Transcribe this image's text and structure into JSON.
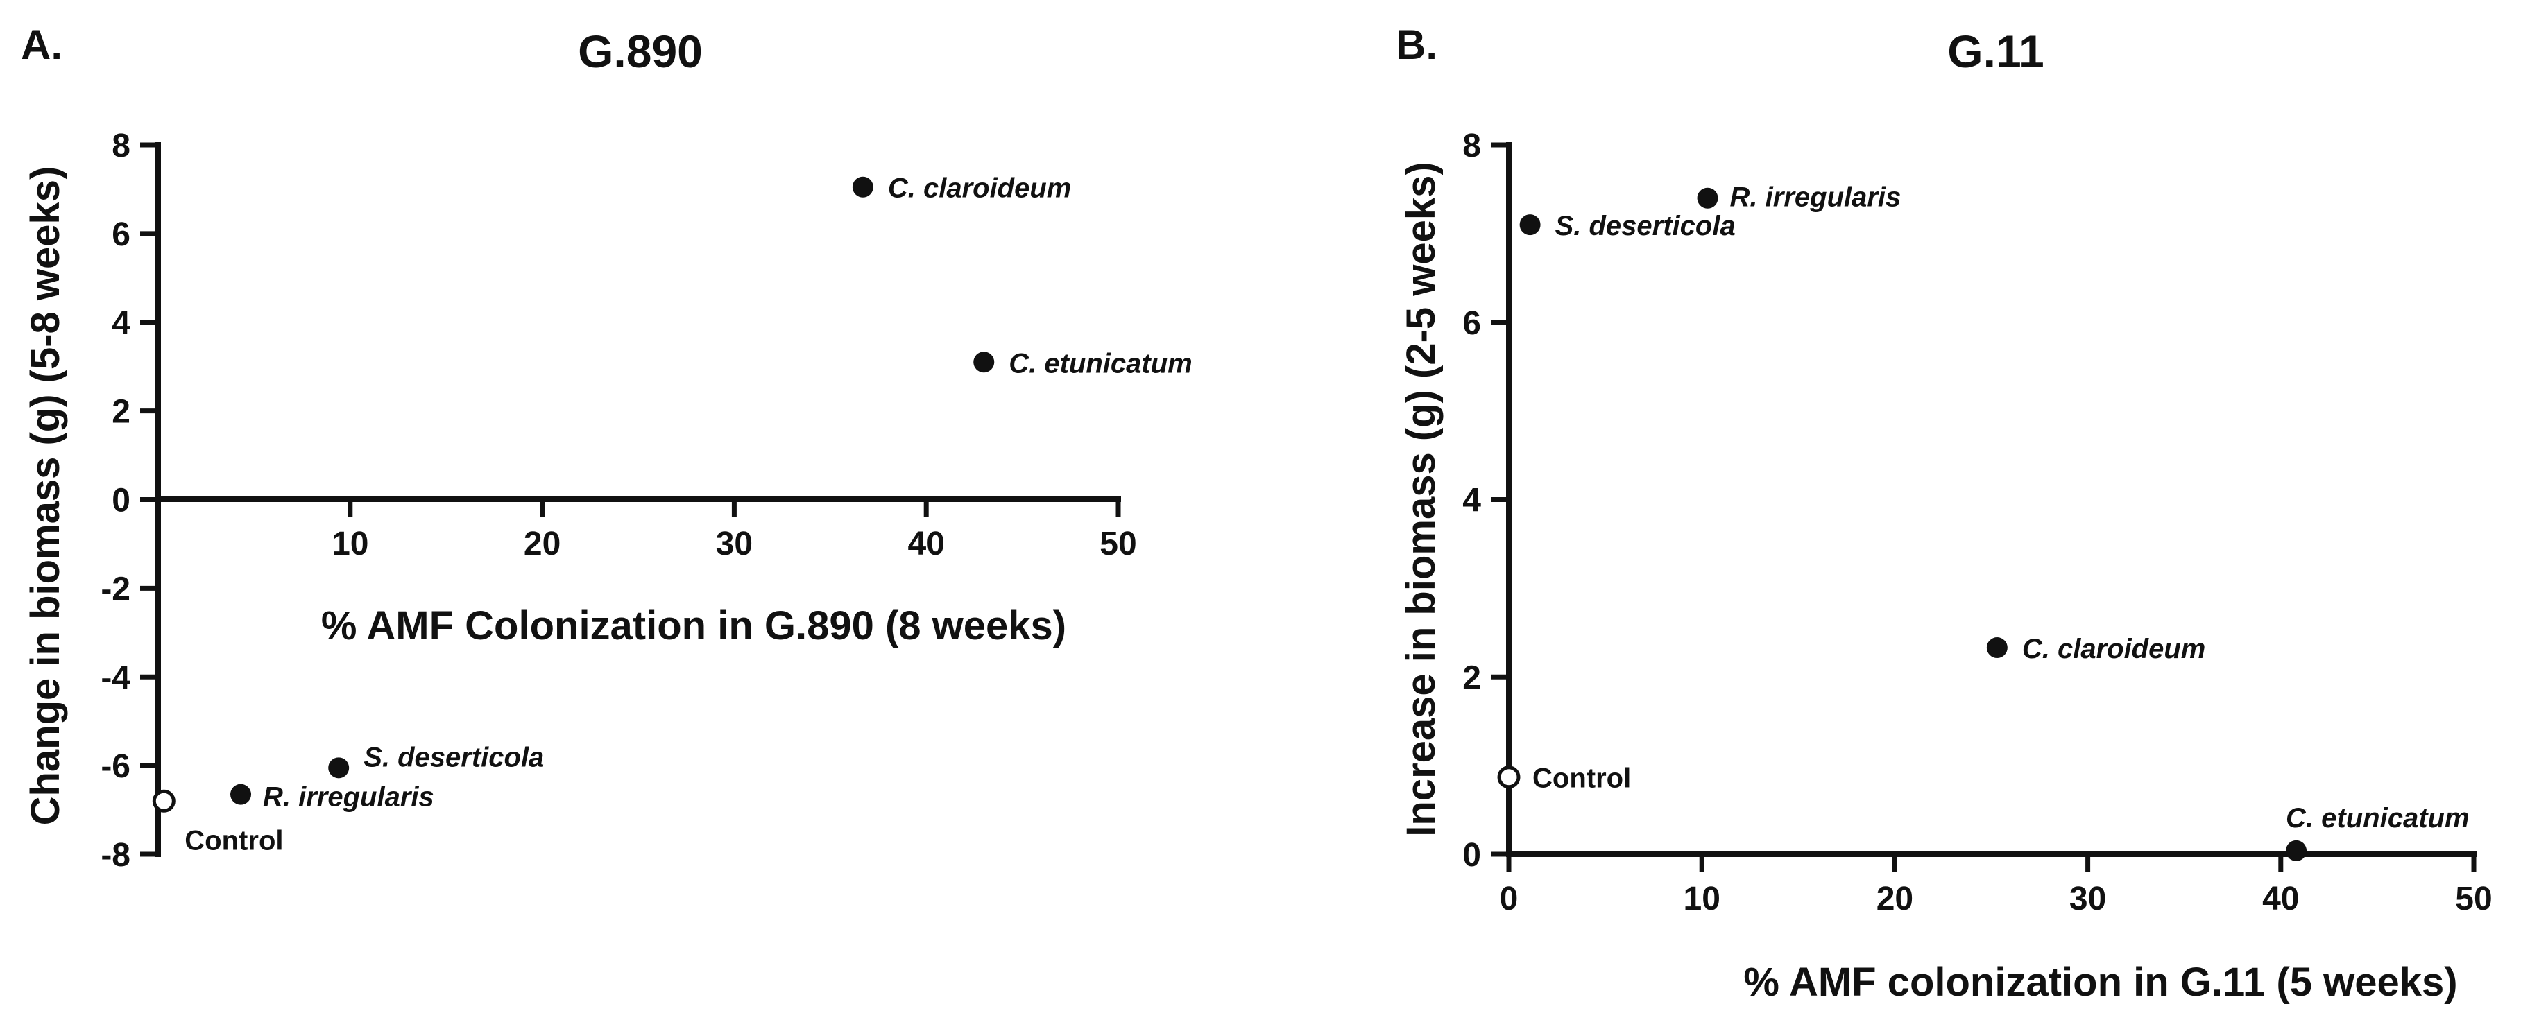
{
  "chart_data": [
    {
      "type": "scatter",
      "panel_letter": "A.",
      "title": "G.890",
      "xlabel": "% AMF Colonization in G.890 (8 weeks)",
      "ylabel": "Change in biomass (g) (5-8 weeks)",
      "xlim": [
        0,
        50
      ],
      "ylim": [
        -8,
        8
      ],
      "x_ticks": [
        10,
        20,
        30,
        40,
        50
      ],
      "y_ticks": [
        -8,
        -6,
        -4,
        -2,
        0,
        2,
        4,
        6,
        8
      ],
      "points": [
        {
          "label": "Control",
          "x": 0.3,
          "y": -6.8,
          "filled": false
        },
        {
          "label": "R. irregularis",
          "x": 4.3,
          "y": -6.65,
          "filled": true
        },
        {
          "label": "S. deserticola",
          "x": 9.4,
          "y": -6.05,
          "filled": true
        },
        {
          "label": "C. claroideum",
          "x": 36.7,
          "y": 7.05,
          "filled": true
        },
        {
          "label": "C. etunicatum",
          "x": 43.0,
          "y": 3.1,
          "filled": true
        }
      ]
    },
    {
      "type": "scatter",
      "panel_letter": "B.",
      "title": "G.11",
      "xlabel": "% AMF colonization in G.11 (5 weeks)",
      "ylabel": "Increase in biomass (g) (2-5 weeks)",
      "xlim": [
        0,
        50
      ],
      "ylim": [
        0,
        8
      ],
      "x_ticks": [
        0,
        10,
        20,
        30,
        40,
        50
      ],
      "y_ticks": [
        0,
        2,
        4,
        6,
        8
      ],
      "points": [
        {
          "label": "Control",
          "x": 0.0,
          "y": 0.87,
          "filled": false
        },
        {
          "label": "S. deserticola",
          "x": 1.1,
          "y": 7.1,
          "filled": true
        },
        {
          "label": "R. irregularis",
          "x": 10.3,
          "y": 7.4,
          "filled": true
        },
        {
          "label": "C. claroideum",
          "x": 25.3,
          "y": 2.33,
          "filled": true
        },
        {
          "label": "C. etunicatum",
          "x": 40.8,
          "y": 0.04,
          "filled": true
        }
      ]
    }
  ]
}
